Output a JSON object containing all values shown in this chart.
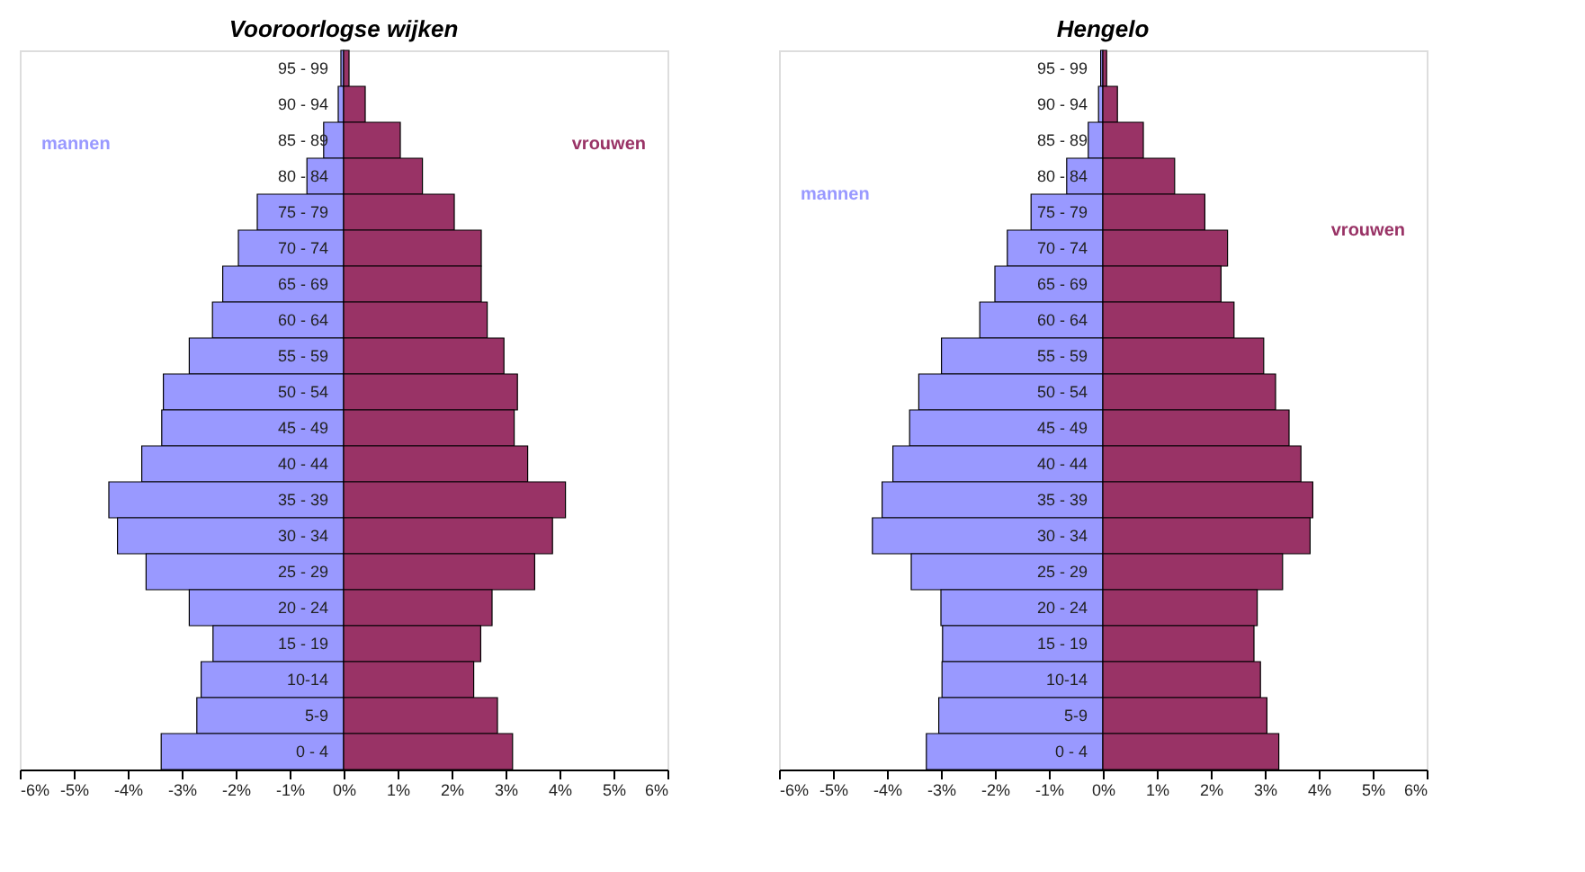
{
  "chart_data": [
    {
      "type": "bar",
      "orientation": "horizontal",
      "stacked": true,
      "title": "Vooroorlogse wijken",
      "categories": [
        "95 - 99",
        "90 - 94",
        "85 - 89",
        "80 - 84",
        "75 - 79",
        "70 - 74",
        "65 - 69",
        "60 - 64",
        "55 - 59",
        "50 - 54",
        "45 - 49",
        "40 - 44",
        "35 - 39",
        "30 - 34",
        "25 - 29",
        "20 - 24",
        "15 - 19",
        "10-14",
        "5-9",
        "0 - 4"
      ],
      "series": [
        {
          "name": "mannen",
          "color": "#9999ff",
          "values": [
            -0.05,
            -0.1,
            -0.37,
            -0.68,
            -1.6,
            -1.95,
            -2.24,
            -2.43,
            -2.86,
            -3.34,
            -3.37,
            -3.74,
            -4.35,
            -4.19,
            -3.66,
            -2.86,
            -2.42,
            -2.64,
            -2.72,
            -3.38
          ]
        },
        {
          "name": "vrouwen",
          "color": "#993366",
          "values": [
            0.1,
            0.4,
            1.05,
            1.46,
            2.05,
            2.55,
            2.55,
            2.66,
            2.97,
            3.22,
            3.16,
            3.41,
            4.11,
            3.87,
            3.54,
            2.75,
            2.54,
            2.41,
            2.85,
            3.13
          ]
        }
      ],
      "xlim": [
        -6,
        6
      ],
      "xticks": [
        {
          "value": -6,
          "label": "-6%"
        },
        {
          "value": -5,
          "label": "-5%"
        },
        {
          "value": -4,
          "label": "-4%"
        },
        {
          "value": -3,
          "label": "-3%"
        },
        {
          "value": -2,
          "label": "-2%"
        },
        {
          "value": -1,
          "label": "-1%"
        },
        {
          "value": 0,
          "label": "0%"
        },
        {
          "value": 1,
          "label": "1%"
        },
        {
          "value": 2,
          "label": "2%"
        },
        {
          "value": 3,
          "label": "3%"
        },
        {
          "value": 4,
          "label": "4%"
        },
        {
          "value": 5,
          "label": "5%"
        },
        {
          "value": 6,
          "label": "6%"
        }
      ],
      "grid": false,
      "legend": false
    },
    {
      "type": "bar",
      "orientation": "horizontal",
      "stacked": true,
      "title": "Hengelo",
      "categories": [
        "95 - 99",
        "90 - 94",
        "85 - 89",
        "80 - 84",
        "75 - 79",
        "70 - 74",
        "65 - 69",
        "60 - 64",
        "55 - 59",
        "50 - 54",
        "45 - 49",
        "40 - 44",
        "35 - 39",
        "30 - 34",
        "25 - 29",
        "20 - 24",
        "15 - 19",
        "10-14",
        "5-9",
        "0 - 4"
      ],
      "series": [
        {
          "name": "mannen",
          "color": "#9999ff",
          "values": [
            -0.04,
            -0.08,
            -0.27,
            -0.67,
            -1.33,
            -1.77,
            -2.0,
            -2.28,
            -2.99,
            -3.41,
            -3.58,
            -3.89,
            -4.09,
            -4.27,
            -3.55,
            -3.0,
            -2.97,
            -2.98,
            -3.04,
            -3.27
          ]
        },
        {
          "name": "vrouwen",
          "color": "#993366",
          "values": [
            0.07,
            0.27,
            0.75,
            1.33,
            1.89,
            2.31,
            2.19,
            2.43,
            2.98,
            3.2,
            3.45,
            3.67,
            3.89,
            3.84,
            3.33,
            2.86,
            2.8,
            2.92,
            3.04,
            3.26
          ]
        }
      ],
      "xlim": [
        -6,
        6
      ],
      "xticks": [
        {
          "value": -6,
          "label": "-6%"
        },
        {
          "value": -5,
          "label": "-5%"
        },
        {
          "value": -4,
          "label": "-4%"
        },
        {
          "value": -3,
          "label": "-3%"
        },
        {
          "value": -2,
          "label": "-2%"
        },
        {
          "value": -1,
          "label": "-1%"
        },
        {
          "value": 0,
          "label": "0%"
        },
        {
          "value": 1,
          "label": "1%"
        },
        {
          "value": 2,
          "label": "2%"
        },
        {
          "value": 3,
          "label": "3%"
        },
        {
          "value": 4,
          "label": "4%"
        },
        {
          "value": 5,
          "label": "5%"
        },
        {
          "value": 6,
          "label": "6%"
        }
      ],
      "grid": false,
      "legend": false
    }
  ]
}
